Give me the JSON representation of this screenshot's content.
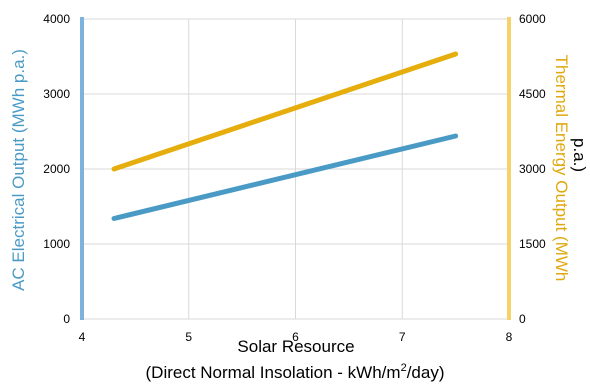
{
  "chart_data": {
    "type": "line",
    "x_label_line1": "Solar Resource",
    "x_label_line2_prefix": "(Direct Normal Insolation - kWh/m",
    "x_label_line2_sup": "2",
    "x_label_line2_suffix": "/day)",
    "y_left_label": "AC Electrical Output (MWh p.a.)",
    "y_right_label_line1": "Thermal Energy Output (MWh",
    "y_right_label_line2": "p.a.)",
    "xlim": [
      4,
      8
    ],
    "ylim_left": [
      0,
      4000
    ],
    "ylim_right": [
      0,
      6000
    ],
    "x_ticks": [
      4,
      5,
      6,
      7,
      8
    ],
    "y_left_ticks": [
      0,
      1000,
      2000,
      3000,
      4000
    ],
    "y_right_ticks": [
      0,
      1500,
      3000,
      4500,
      6000
    ],
    "grid": true,
    "series": [
      {
        "axis": "left",
        "color": "#4a9ac6",
        "points": [
          [
            4.3,
            1340
          ],
          [
            7.5,
            2440
          ]
        ]
      },
      {
        "axis": "right",
        "color": "#e5ae0c",
        "points": [
          [
            4.3,
            3000
          ],
          [
            7.5,
            5300
          ]
        ]
      }
    ],
    "axis_colors": {
      "left": "#7cb3de",
      "right": "#f5d36a",
      "left_text": "#4a9ac6",
      "right_text": "#e0a80f"
    }
  }
}
